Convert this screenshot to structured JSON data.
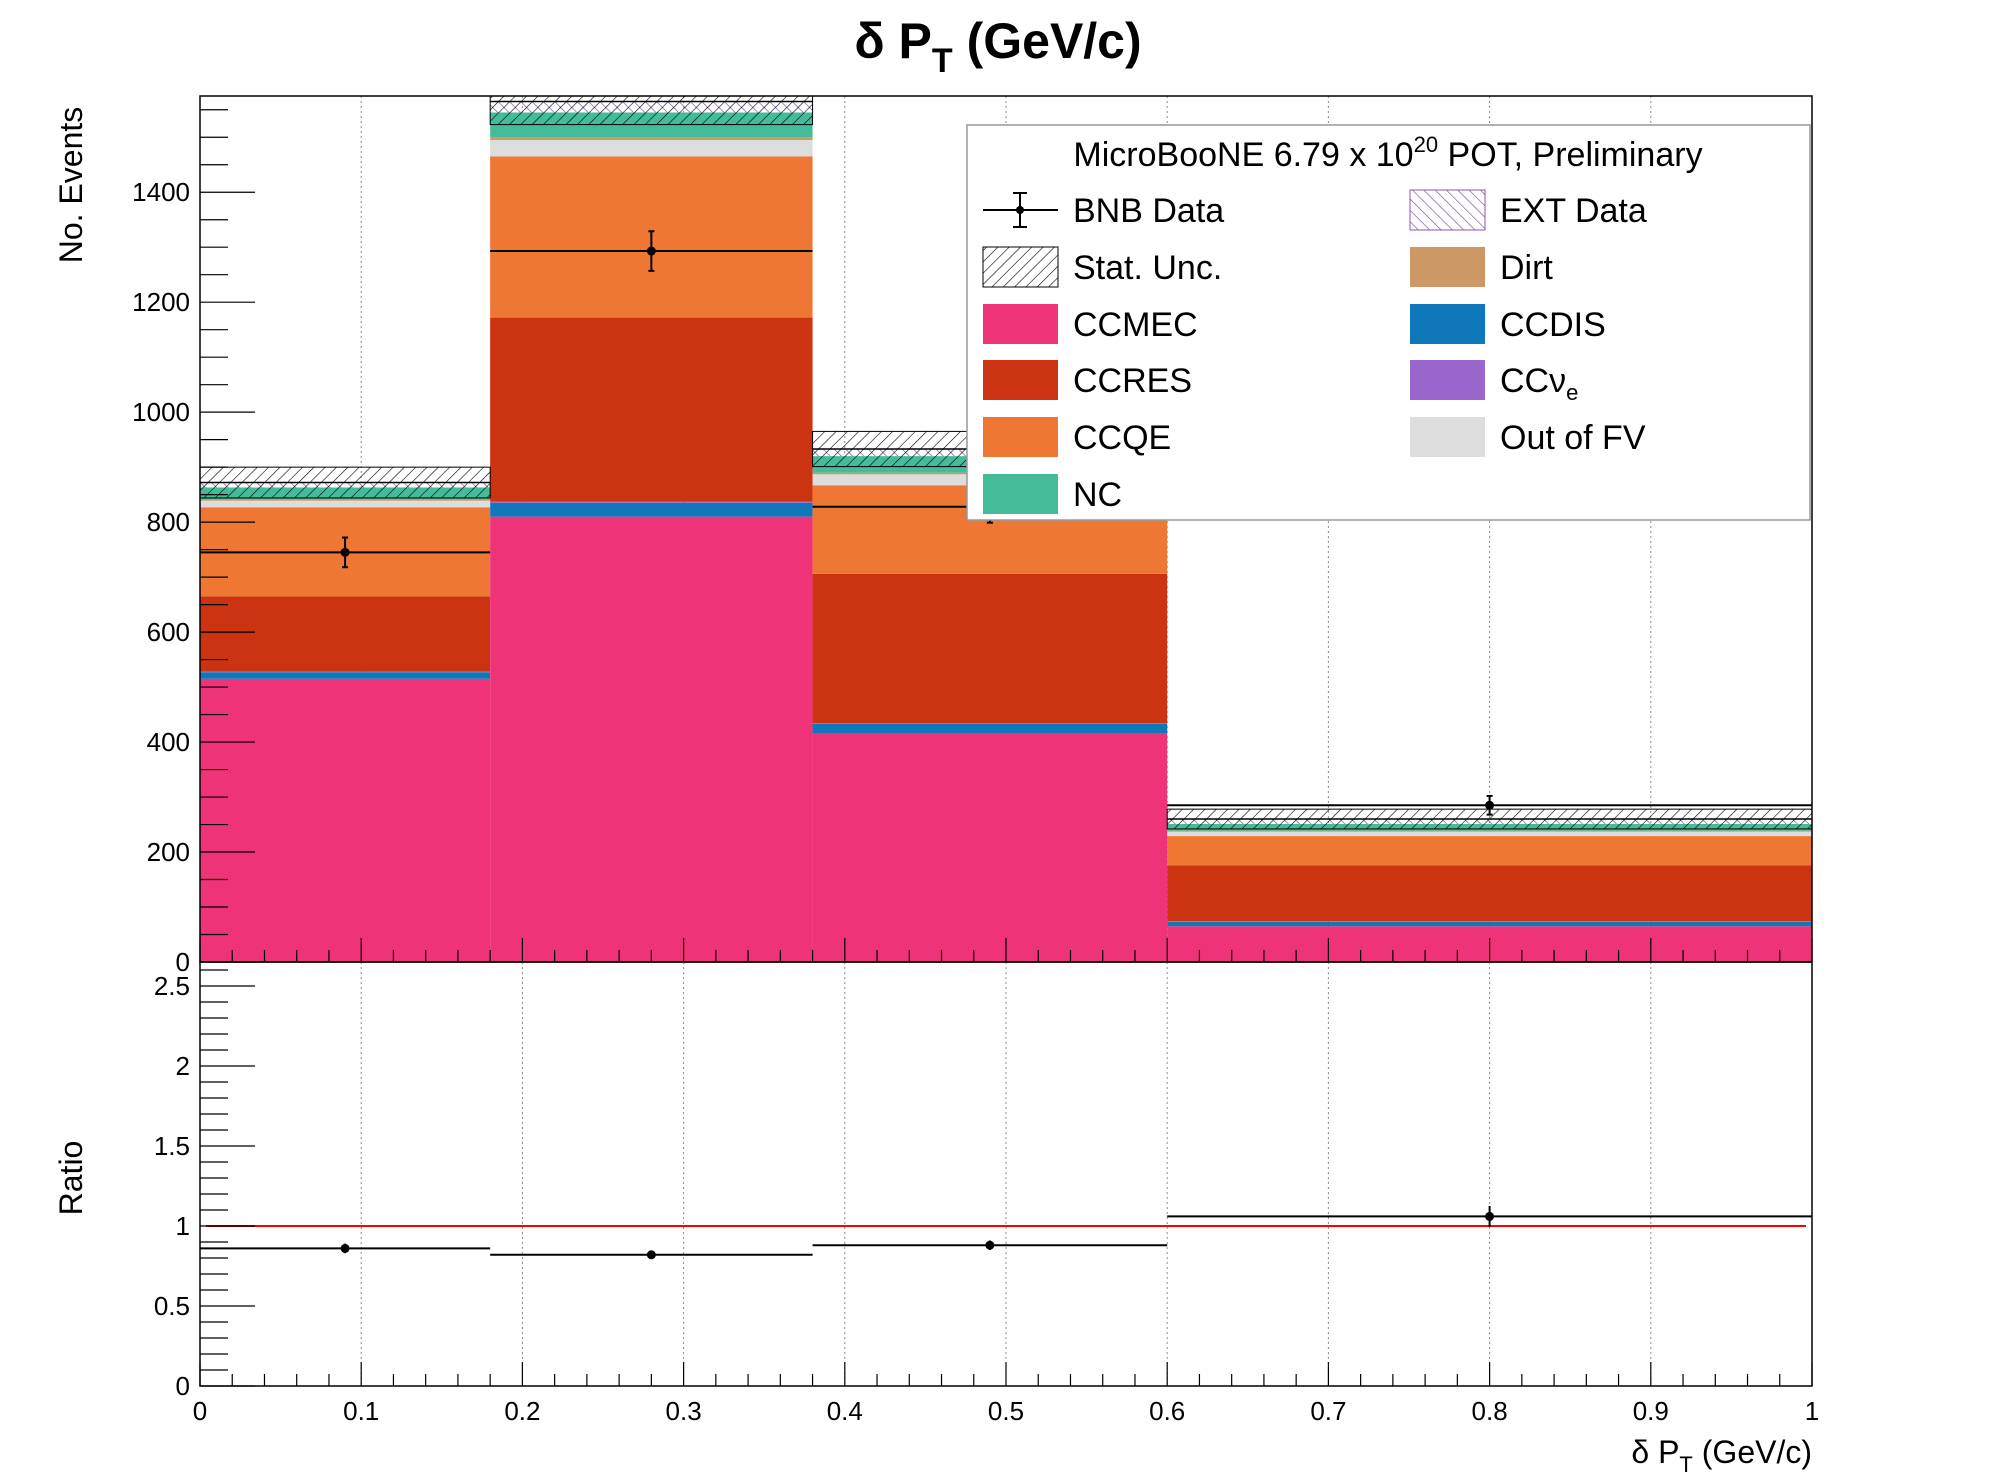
{
  "chart_data": [
    {
      "type": "bar",
      "stacked": true,
      "title": "δ P_T (GeV/c)",
      "ylabel": "No. Events",
      "bin_edges": [
        0,
        0.18,
        0.38,
        0.6,
        1.0
      ],
      "ylim": [
        0,
        1575
      ],
      "xlim": [
        0,
        1
      ],
      "yticks": [
        "0",
        "200",
        "400",
        "600",
        "800",
        "1000",
        "1200",
        "1400"
      ],
      "grid": "vertical dotted",
      "series": [
        {
          "name": "CCMEC",
          "color": "#ef3378",
          "values": [
            515,
            810,
            415,
            65
          ]
        },
        {
          "name": "CCDIS",
          "color": "#0f78bb",
          "values": [
            12,
            25,
            18,
            8
          ]
        },
        {
          "name": "CCν_e",
          "color": "#9966cc",
          "values": [
            1,
            2,
            1,
            1
          ]
        },
        {
          "name": "CCRES",
          "color": "#cc3311",
          "values": [
            137,
            335,
            272,
            102
          ]
        },
        {
          "name": "CCQE",
          "color": "#ee7733",
          "values": [
            162,
            293,
            161,
            53
          ]
        },
        {
          "name": "Out of FV",
          "color": "#dddddd",
          "values": [
            12,
            30,
            20,
            8
          ]
        },
        {
          "name": "Dirt",
          "color": "#cc9966",
          "values": [
            2,
            5,
            3,
            2
          ]
        },
        {
          "name": "NC",
          "color": "#44bb99",
          "values": [
            22,
            45,
            30,
            12
          ]
        },
        {
          "name": "EXT Data",
          "color": "#8855aa",
          "values": [
            9,
            20,
            13,
            9
          ]
        }
      ],
      "stat_unc": [
        28,
        42,
        32,
        18
      ],
      "bnb_data": {
        "name": "BNB Data",
        "x": [
          0.09,
          0.28,
          0.49,
          0.8
        ],
        "values": [
          745,
          1293,
          828,
          285
        ],
        "errors": [
          27,
          36,
          29,
          17
        ]
      },
      "legend": {
        "header": "MicroBooNE 6.79 x 10",
        "header_sup": "20",
        "header_tail": " POT, Preliminary",
        "placement": "top-right",
        "left": [
          "BNB Data",
          "Stat. Unc.",
          "CCMEC",
          "CCRES",
          "CCQE",
          "NC"
        ],
        "right": [
          "EXT Data",
          "Dirt",
          "CCDIS",
          "CCν_e",
          "Out of FV"
        ]
      }
    },
    {
      "type": "scatter",
      "ylabel": "Ratio",
      "xlabel": "δ P_T (GeV/c)",
      "ylim": [
        0,
        2.65
      ],
      "xlim": [
        0,
        1
      ],
      "yticks": [
        "0",
        "0.5",
        "1",
        "1.5",
        "2",
        "2.5"
      ],
      "xticks": [
        "0",
        "0.1",
        "0.2",
        "0.3",
        "0.4",
        "0.5",
        "0.6",
        "0.7",
        "0.8",
        "0.9",
        "1"
      ],
      "bin_edges": [
        0,
        0.18,
        0.38,
        0.6,
        1.0
      ],
      "x": [
        0.09,
        0.28,
        0.49,
        0.8
      ],
      "values": [
        0.86,
        0.82,
        0.88,
        1.06
      ],
      "errors": [
        0.03,
        0.025,
        0.03,
        0.065
      ],
      "reference_line": {
        "y": 1,
        "color": "#ff0000"
      }
    }
  ],
  "title": {
    "main": "δ P",
    "sub": "T",
    "tail": " (GeV/c)"
  },
  "xlabel": {
    "main": "δ P",
    "sub": "T",
    "tail": " (GeV/c)"
  },
  "top_ylabel": "No. Events",
  "bottom_ylabel": "Ratio"
}
